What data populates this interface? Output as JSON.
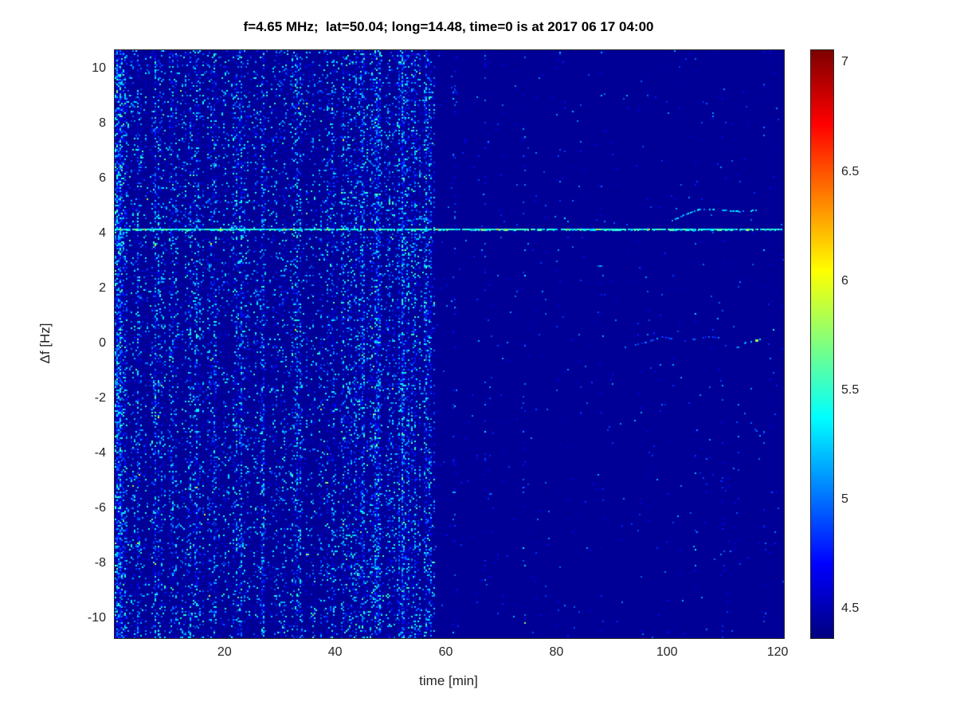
{
  "chart_data": {
    "type": "heatmap",
    "title": "f=4.65 MHz;  lat=50.04; long=14.48, time=0 is at 2017 06 17 04:00",
    "xlabel": "time [min]",
    "ylabel": "Δf [Hz]",
    "xlim": [
      0,
      121
    ],
    "ylim": [
      -10.7,
      10.7
    ],
    "x_ticks": [
      20,
      40,
      60,
      80,
      100,
      120
    ],
    "y_ticks": [
      10,
      8,
      6,
      4,
      2,
      0,
      -2,
      -4,
      -6,
      -8,
      -10
    ],
    "grid": false,
    "colorbar": {
      "position": "right",
      "colormap": "jet",
      "clim": [
        4.37,
        7.06
      ],
      "ticks": [
        7,
        6.5,
        6,
        5.5,
        5,
        4.5
      ]
    },
    "background_value": 4.43,
    "regions": [
      {
        "name": "noisy-interval",
        "t_range": [
          0,
          58
        ],
        "density": 0.16,
        "value_base": 4.5,
        "value_spread": 1.05
      },
      {
        "name": "quiet-interval",
        "t_range": [
          58,
          121
        ],
        "density": 0.012,
        "value_base": 4.48,
        "value_spread": 0.7
      }
    ],
    "vertical_stripes": [
      {
        "t": 0.8,
        "w": 1.6,
        "b": 3.0
      },
      {
        "t": 4.0,
        "w": 1.0,
        "b": 1.2
      },
      {
        "t": 7.5,
        "w": 1.2,
        "b": 1.5
      },
      {
        "t": 10.5,
        "w": 0.8,
        "b": 1.0
      },
      {
        "t": 14.0,
        "w": 1.2,
        "b": 1.6
      },
      {
        "t": 18.0,
        "w": 0.8,
        "b": 0.8
      },
      {
        "t": 22.5,
        "w": 1.5,
        "b": 1.8
      },
      {
        "t": 27.0,
        "w": 1.0,
        "b": 1.2
      },
      {
        "t": 30.0,
        "w": 1.0,
        "b": 1.0
      },
      {
        "t": 33.0,
        "w": 1.2,
        "b": 1.4
      },
      {
        "t": 36.0,
        "w": 1.0,
        "b": 1.1
      },
      {
        "t": 39.0,
        "w": 1.0,
        "b": 1.3
      },
      {
        "t": 42.0,
        "w": 1.5,
        "b": 1.8
      },
      {
        "t": 44.5,
        "w": 1.2,
        "b": 2.0
      },
      {
        "t": 47.0,
        "w": 1.5,
        "b": 2.2
      },
      {
        "t": 49.5,
        "w": 1.0,
        "b": 1.5
      },
      {
        "t": 52.0,
        "w": 1.5,
        "b": 1.9
      },
      {
        "t": 54.5,
        "w": 1.0,
        "b": 1.4
      },
      {
        "t": 56.5,
        "w": 1.0,
        "b": 1.6
      },
      {
        "t": 61.5,
        "w": 0.4,
        "b": 6.0
      },
      {
        "t": 67.0,
        "w": 0.3,
        "b": 4.0
      },
      {
        "t": 74.0,
        "w": 0.35,
        "b": 6.0
      },
      {
        "t": 80.5,
        "w": 0.3,
        "b": 3.0
      },
      {
        "t": 88.0,
        "w": 0.35,
        "b": 8.0
      },
      {
        "t": 90.0,
        "w": 0.3,
        "b": 5.0
      },
      {
        "t": 96.5,
        "w": 0.3,
        "b": 3.0
      },
      {
        "t": 105.0,
        "w": 0.3,
        "b": 4.0
      },
      {
        "t": 110.0,
        "w": 0.3,
        "b": 3.0
      },
      {
        "t": 117.5,
        "w": 0.35,
        "b": 7.0
      }
    ],
    "spectral_line": {
      "freq": 4.18,
      "value": 5.2,
      "bright_value": 6.0,
      "bright_prob": 0.05,
      "density": 0.93
    },
    "traces": [
      {
        "points": [
          [
            51,
            4.45
          ],
          [
            55,
            4.6
          ],
          [
            57.5,
            4.5
          ]
        ],
        "value": 5.1,
        "density": 0.45
      },
      {
        "points": [
          [
            100.5,
            4.5
          ],
          [
            103,
            4.75
          ],
          [
            106,
            4.95
          ],
          [
            110,
            4.9
          ],
          [
            113,
            4.85
          ],
          [
            116,
            4.9
          ]
        ],
        "value": 5.2,
        "density": 0.55
      },
      {
        "points": [
          [
            92,
            -0.1
          ],
          [
            96,
            0.1
          ],
          [
            99,
            0.3
          ],
          [
            101,
            0.2
          ]
        ],
        "value": 5.0,
        "density": 0.5
      },
      {
        "points": [
          [
            103,
            0.15
          ],
          [
            107,
            0.3
          ],
          [
            110,
            0.25
          ]
        ],
        "value": 4.9,
        "density": 0.4
      },
      {
        "points": [
          [
            113.5,
            0.05
          ],
          [
            116.5,
            0.2
          ]
        ],
        "value": 5.3,
        "density": 0.6,
        "bright_point": [
          116,
          0.15,
          5.8
        ]
      },
      {
        "points": [
          [
            113.8,
            -2.5
          ],
          [
            115.2,
            -2.9
          ],
          [
            116.5,
            -3.3
          ]
        ],
        "value": 5.0,
        "density": 0.5
      }
    ]
  }
}
